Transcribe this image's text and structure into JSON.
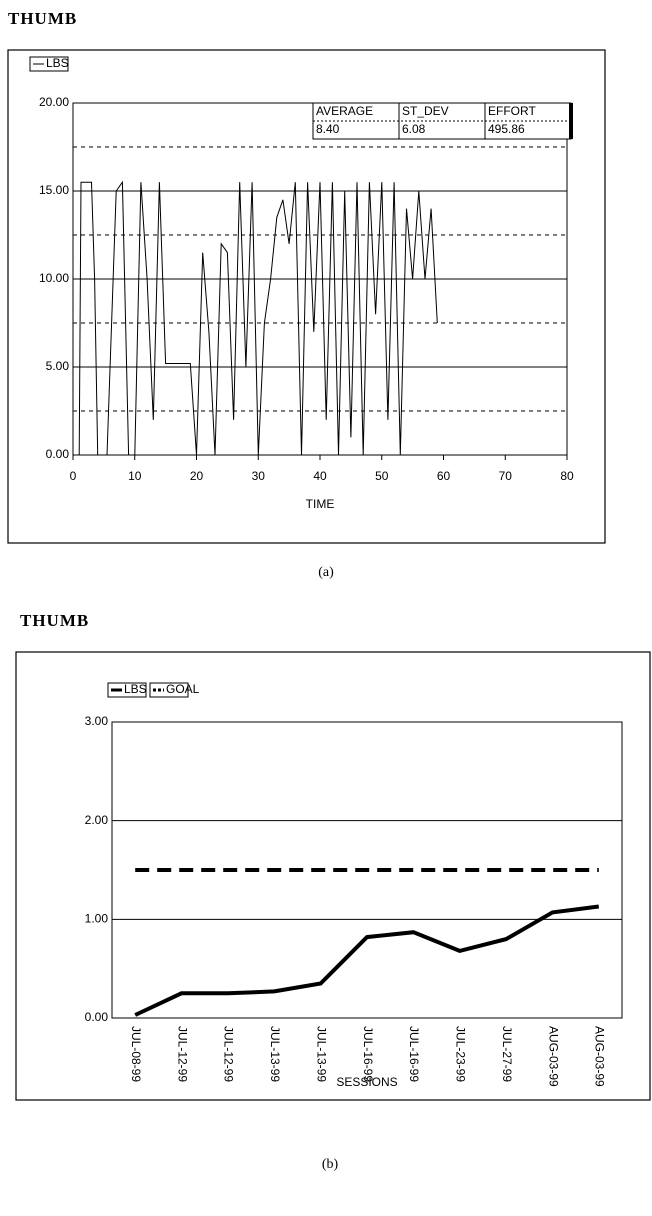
{
  "chart_data": [
    {
      "type": "line",
      "title": "THUMB",
      "caption": "(a)",
      "x_label": "TIME",
      "x": [
        0,
        1,
        1.3,
        3,
        3.5,
        4,
        5.5,
        7,
        8,
        9,
        10,
        11,
        12,
        13,
        14,
        15,
        19,
        20,
        21,
        22,
        23,
        24,
        25,
        26,
        27,
        28,
        29,
        30,
        31,
        32,
        33,
        34,
        35,
        36,
        37,
        38,
        39,
        40,
        41,
        42,
        43,
        44,
        45,
        46,
        47,
        48,
        49,
        50,
        51,
        52,
        53,
        54,
        55,
        56,
        57,
        58,
        59
      ],
      "series": [
        {
          "name": "LBS",
          "color": "#000000",
          "values": [
            0,
            0,
            15.5,
            15.5,
            10,
            0,
            0,
            15,
            15.5,
            0,
            0,
            15.5,
            10,
            2,
            15.5,
            5.2,
            5.2,
            0,
            11.5,
            7,
            0,
            12,
            11.5,
            2,
            15.5,
            5,
            15.5,
            0,
            7.5,
            10,
            13.5,
            14.5,
            12,
            15.5,
            0,
            15.5,
            7,
            15.5,
            2,
            15.5,
            0,
            15,
            1,
            15.5,
            0,
            15.5,
            8,
            15.5,
            2,
            15.5,
            0,
            14,
            10,
            15,
            10,
            14,
            7.5
          ]
        }
      ],
      "xlim": [
        0,
        80
      ],
      "xticks": [
        0,
        10,
        20,
        30,
        40,
        50,
        60,
        70,
        80
      ],
      "ylim": [
        0,
        20
      ],
      "yticks": [
        {
          "value": 0,
          "label": "0.00"
        },
        {
          "value": 5,
          "label": "5.00"
        },
        {
          "value": 10,
          "label": "10.00"
        },
        {
          "value": 15,
          "label": "15.00"
        },
        {
          "value": 20,
          "label": "20.00"
        }
      ],
      "minor_yticks": [
        2.5,
        7.5,
        12.5,
        17.5
      ],
      "grid": true,
      "stats_table": {
        "columns": [
          "AVERAGE",
          "ST_DEV",
          "EFFORT"
        ],
        "values": [
          "8.40",
          "6.08",
          "495.86"
        ]
      }
    },
    {
      "type": "line",
      "title": "THUMB",
      "caption": "(b)",
      "x_label": "SESSIONS",
      "categories": [
        "JUL-08-99",
        "JUL-12-99",
        "JUL-12-99",
        "JUL-13-99",
        "JUL-13-99",
        "JUL-16-99",
        "JUL-16-99",
        "JUL-23-99",
        "JUL-27-99",
        "AUG-03-99",
        "AUG-03-99"
      ],
      "series": [
        {
          "name": "LBS",
          "color": "#000000",
          "style": "solid",
          "values": [
            0.03,
            0.25,
            0.25,
            0.27,
            0.35,
            0.82,
            0.87,
            0.68,
            0.8,
            1.07,
            1.13
          ]
        },
        {
          "name": "GOAL",
          "color": "#000000",
          "style": "dashed",
          "values": [
            1.5,
            1.5,
            1.5,
            1.5,
            1.5,
            1.5,
            1.5,
            1.5,
            1.5,
            1.5,
            1.5
          ]
        }
      ],
      "ylim": [
        0,
        3
      ],
      "yticks": [
        {
          "value": 0,
          "label": "0.00"
        },
        {
          "value": 1,
          "label": "1.00"
        },
        {
          "value": 2,
          "label": "2.00"
        },
        {
          "value": 3,
          "label": "3.00"
        }
      ],
      "grid": true
    }
  ]
}
